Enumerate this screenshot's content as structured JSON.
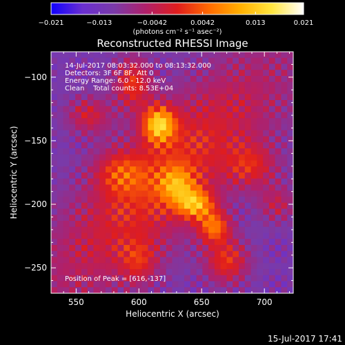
{
  "colors": {
    "background": "#000000",
    "text": "#ffffff",
    "colorbar_stops": [
      "#1000ff",
      "#6a2fd0",
      "#7a3aa8",
      "#b0206a",
      "#e01d1d",
      "#ff6a00",
      "#ffb000",
      "#ffe640",
      "#ffffff"
    ]
  },
  "chart_data": {
    "type": "heatmap",
    "title": "Reconstructed RHESSI Image",
    "xlabel": "Heliocentric X (arcsec)",
    "ylabel": "Heliocentric Y (arcsec)",
    "xlim": [
      530,
      723
    ],
    "ylim": [
      -270,
      -80
    ],
    "xticks": [
      550,
      600,
      650,
      700
    ],
    "yticks": [
      -100,
      -150,
      -200,
      -250
    ],
    "xtick_labels": [
      "550",
      "600",
      "650",
      "700"
    ],
    "ytick_labels": [
      "−100",
      "−150",
      "−200",
      "−250"
    ],
    "colorbar": {
      "range": [
        -0.021,
        0.021
      ],
      "ticks": [
        -0.021,
        -0.013,
        -0.0042,
        0.0042,
        0.013,
        0.021
      ],
      "tick_labels": [
        "−0.021",
        "−0.013",
        "−0.0042",
        "0.0042",
        "0.013",
        "0.021"
      ],
      "unit_label": "(photons cm⁻² s⁻¹ asec⁻²)"
    },
    "info_lines": [
      "14-Jul-2017 08:03:32.000 to 08:13:32.000",
      "Detectors: 3F 6F 8F, Att 0",
      "Energy Range: 6.0 - 12.0 keV",
      "Clean    Total counts: 8.53E+04"
    ],
    "peak_label": "Position of Peak = [616,-137]",
    "peak": [
      616,
      -137
    ],
    "sources": [
      {
        "x": 616,
        "y": -137,
        "sx": 9,
        "sy": 10,
        "amp": 0.021
      },
      {
        "x": 645,
        "y": -200,
        "sx": 10,
        "sy": 8,
        "amp": 0.017
      },
      {
        "x": 660,
        "y": -218,
        "sx": 9,
        "sy": 9,
        "amp": 0.015
      },
      {
        "x": 630,
        "y": -185,
        "sx": 10,
        "sy": 10,
        "amp": 0.012
      },
      {
        "x": 670,
        "y": -245,
        "sx": 12,
        "sy": 12,
        "amp": 0.012
      },
      {
        "x": 595,
        "y": -105,
        "sx": 10,
        "sy": 14,
        "amp": 0.012
      },
      {
        "x": 560,
        "y": -130,
        "sx": 12,
        "sy": 10,
        "amp": 0.009
      },
      {
        "x": 585,
        "y": -175,
        "sx": 14,
        "sy": 12,
        "amp": 0.009
      },
      {
        "x": 690,
        "y": -170,
        "sx": 14,
        "sy": 12,
        "amp": 0.009
      },
      {
        "x": 600,
        "y": -245,
        "sx": 10,
        "sy": 12,
        "amp": 0.008
      },
      {
        "x": 710,
        "y": -200,
        "sx": 10,
        "sy": 10,
        "amp": 0.007
      }
    ],
    "background_level": -0.011
  },
  "footer": {
    "timestamp": "15-Jul-2017 17:41"
  }
}
